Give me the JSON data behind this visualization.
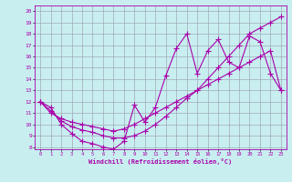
{
  "xlabel": "Windchill (Refroidissement éolien,°C)",
  "bg_color": "#c8eef0",
  "line_color": "#aa00aa",
  "grid_color": "#9999aa",
  "xlim": [
    -0.5,
    23.5
  ],
  "ylim": [
    7.8,
    20.5
  ],
  "yticks": [
    8,
    9,
    10,
    11,
    12,
    13,
    14,
    15,
    16,
    17,
    18,
    19,
    20
  ],
  "xticks": [
    0,
    1,
    2,
    3,
    4,
    5,
    6,
    7,
    8,
    9,
    10,
    11,
    12,
    13,
    14,
    15,
    16,
    17,
    18,
    19,
    20,
    21,
    22,
    23
  ],
  "line1_x": [
    0,
    1,
    2,
    3,
    4,
    5,
    6,
    7,
    8,
    9,
    10,
    11,
    12,
    13,
    14,
    15,
    16,
    17,
    18,
    19,
    20,
    21,
    22,
    23
  ],
  "line1_y": [
    12.0,
    11.5,
    10.0,
    9.2,
    8.5,
    8.3,
    8.0,
    7.8,
    8.5,
    11.7,
    10.2,
    11.5,
    14.3,
    16.7,
    18.0,
    14.5,
    16.5,
    17.5,
    15.5,
    15.0,
    17.8,
    17.3,
    14.5,
    13.0
  ],
  "line2_x": [
    0,
    1,
    2,
    3,
    4,
    5,
    6,
    7,
    8,
    9,
    10,
    11,
    12,
    13,
    14,
    15,
    16,
    17,
    18,
    19,
    20,
    21,
    22,
    23
  ],
  "line2_y": [
    12.0,
    11.0,
    10.5,
    10.2,
    10.0,
    9.8,
    9.6,
    9.4,
    9.6,
    10.0,
    10.5,
    11.0,
    11.5,
    12.0,
    12.5,
    13.0,
    13.5,
    14.0,
    14.5,
    15.0,
    15.5,
    16.0,
    16.5,
    13.0
  ],
  "line3_x": [
    0,
    1,
    2,
    3,
    4,
    5,
    6,
    7,
    8,
    9,
    10,
    11,
    12,
    13,
    14,
    15,
    16,
    17,
    18,
    19,
    20,
    21,
    22,
    23
  ],
  "line3_y": [
    12.0,
    11.2,
    10.3,
    9.8,
    9.5,
    9.3,
    9.0,
    8.8,
    8.8,
    9.0,
    9.4,
    10.0,
    10.7,
    11.5,
    12.3,
    13.0,
    14.0,
    15.0,
    16.0,
    17.0,
    18.0,
    18.5,
    19.0,
    19.5
  ]
}
